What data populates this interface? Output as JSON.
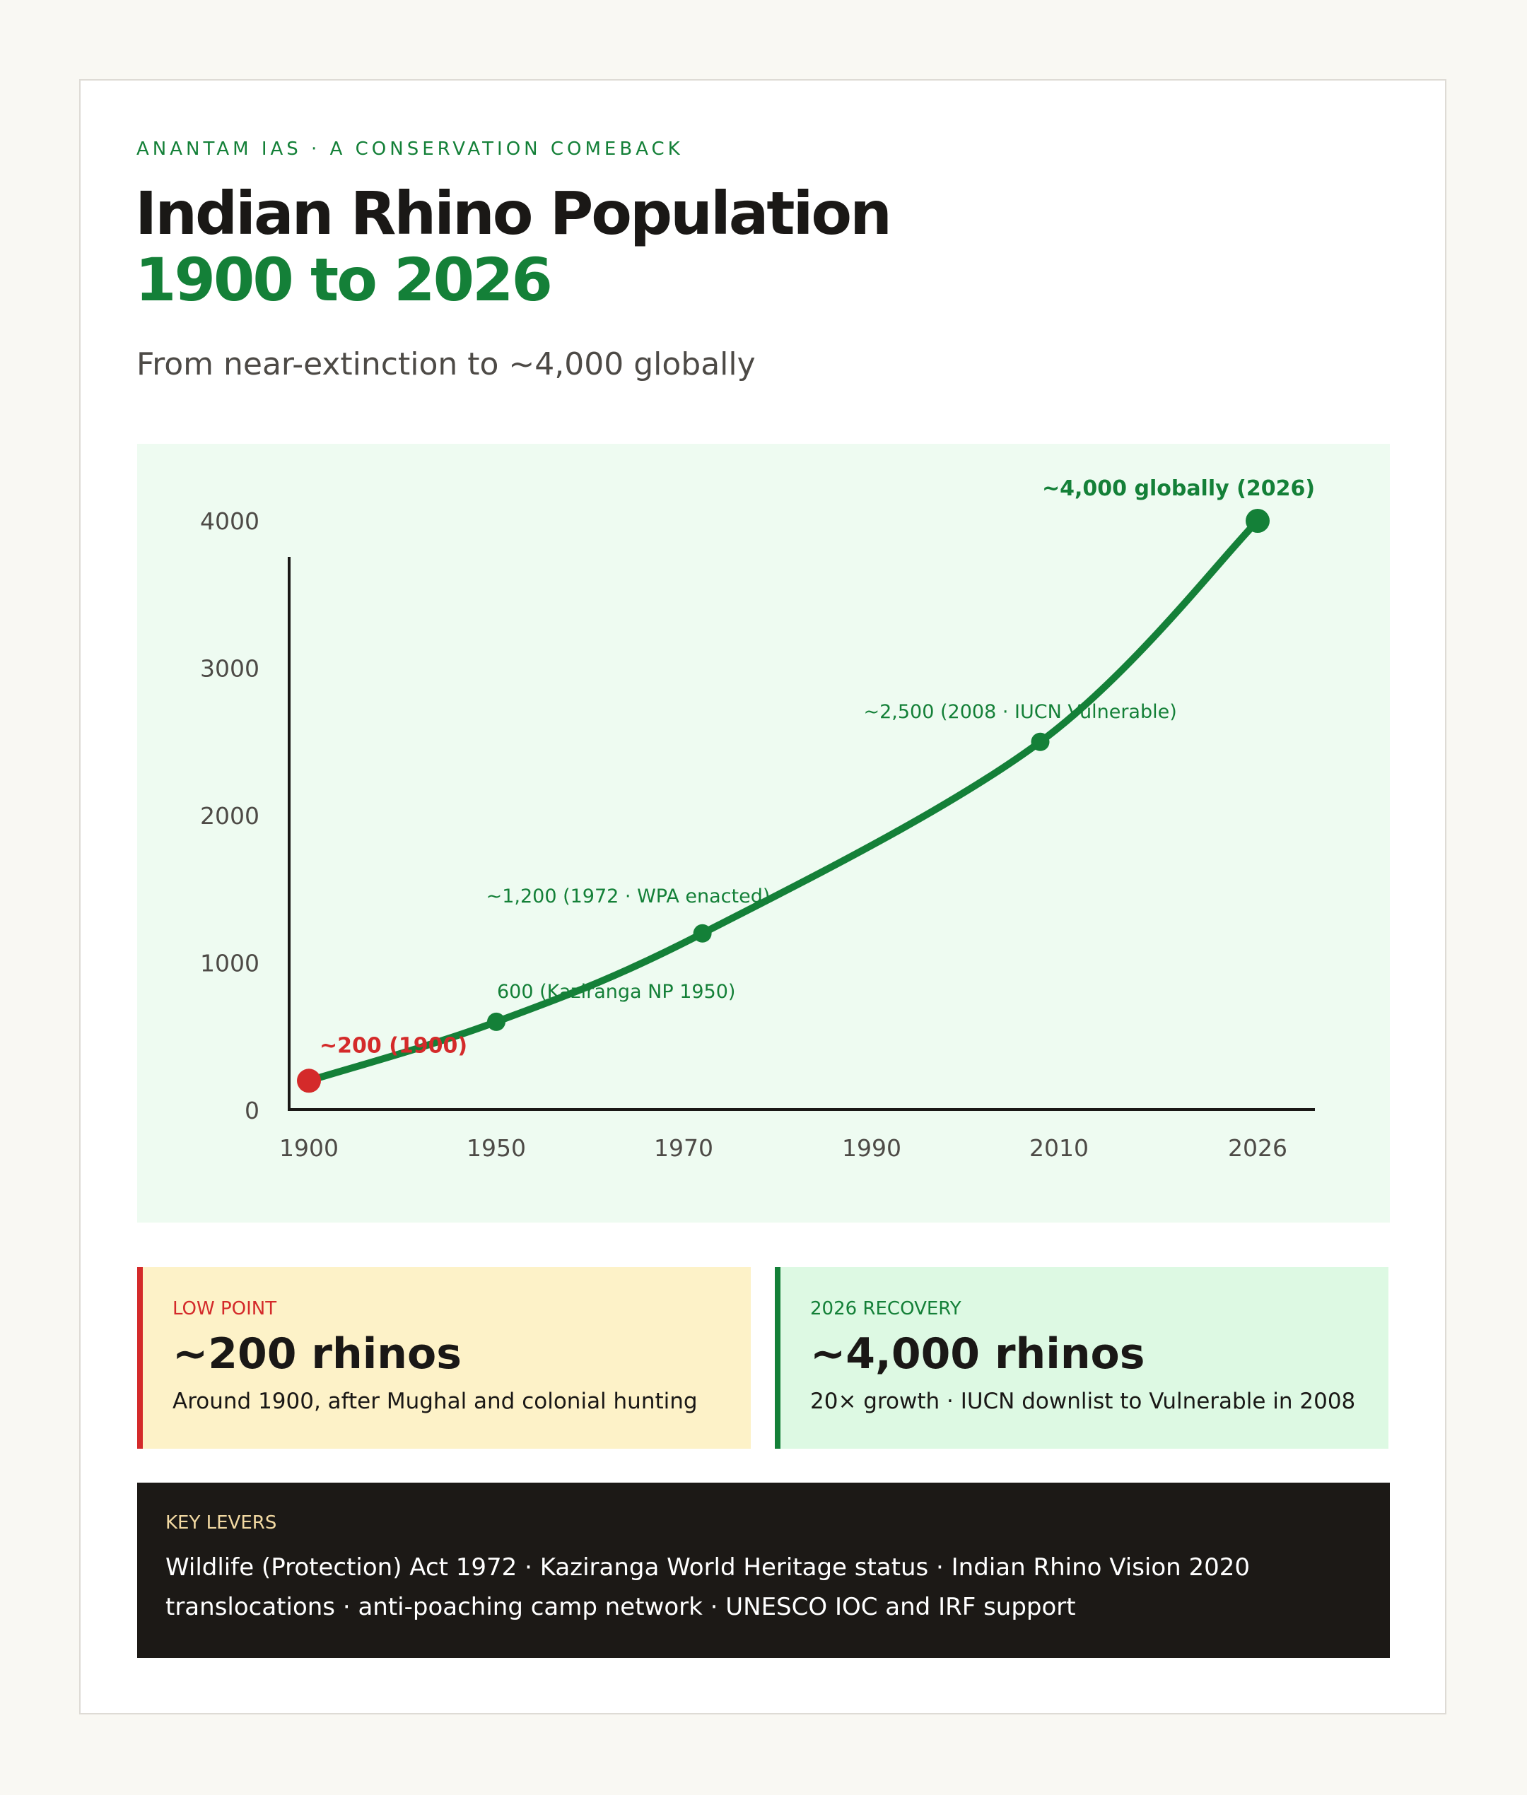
{
  "header": {
    "kicker": "ANANTAM IAS · A CONSERVATION COMEBACK",
    "title_line1": "Indian Rhino Population",
    "title_line2": "1900 to 2026",
    "subtitle": "From near-extinction to ~4,000 globally"
  },
  "colors": {
    "accent_green": "#148038",
    "alert_red": "#d42a2a",
    "chart_bg": "#eefbf1",
    "low_bg": "#fdf2c8",
    "recovery_bg": "#ddf9e3",
    "levers_bg": "#1c1916"
  },
  "chart_data": {
    "type": "line",
    "title": "",
    "xlabel": "",
    "ylabel": "",
    "x_tick_labels": [
      "1900",
      "1950",
      "1970",
      "1990",
      "2010",
      "2026"
    ],
    "y_ticks": [
      0,
      1000,
      2000,
      3000,
      4000
    ],
    "ylim": [
      0,
      4000
    ],
    "grid": false,
    "series": [
      {
        "points": [
          {
            "year": 1900,
            "value": 200,
            "label": "~200 (1900)",
            "highlight": "red"
          },
          {
            "year": 1950,
            "value": 600,
            "label": "600 (Kaziranga NP 1950)"
          },
          {
            "year": 1972,
            "value": 1200,
            "label": "~1,200 (1972 · WPA enacted)"
          },
          {
            "year": 2008,
            "value": 2500,
            "label": "~2,500 (2008 · IUCN Vulnerable)"
          },
          {
            "year": 2026,
            "value": 4000,
            "label": "~4,000 globally (2026)",
            "highlight": "end"
          }
        ]
      }
    ]
  },
  "stats": {
    "low": {
      "label": "LOW POINT",
      "value": "~200 rhinos",
      "desc": "Around 1900, after Mughal and colonial hunting"
    },
    "recovery": {
      "label": "2026 RECOVERY",
      "value": "~4,000 rhinos",
      "desc": "20× growth · IUCN downlist to Vulnerable in 2008"
    }
  },
  "levers": {
    "label": "KEY LEVERS",
    "line1": "Wildlife (Protection) Act 1972 · Kaziranga World Heritage status · Indian Rhino Vision 2020",
    "line2": "translocations · anti-poaching camp network · UNESCO IOC and IRF support"
  }
}
